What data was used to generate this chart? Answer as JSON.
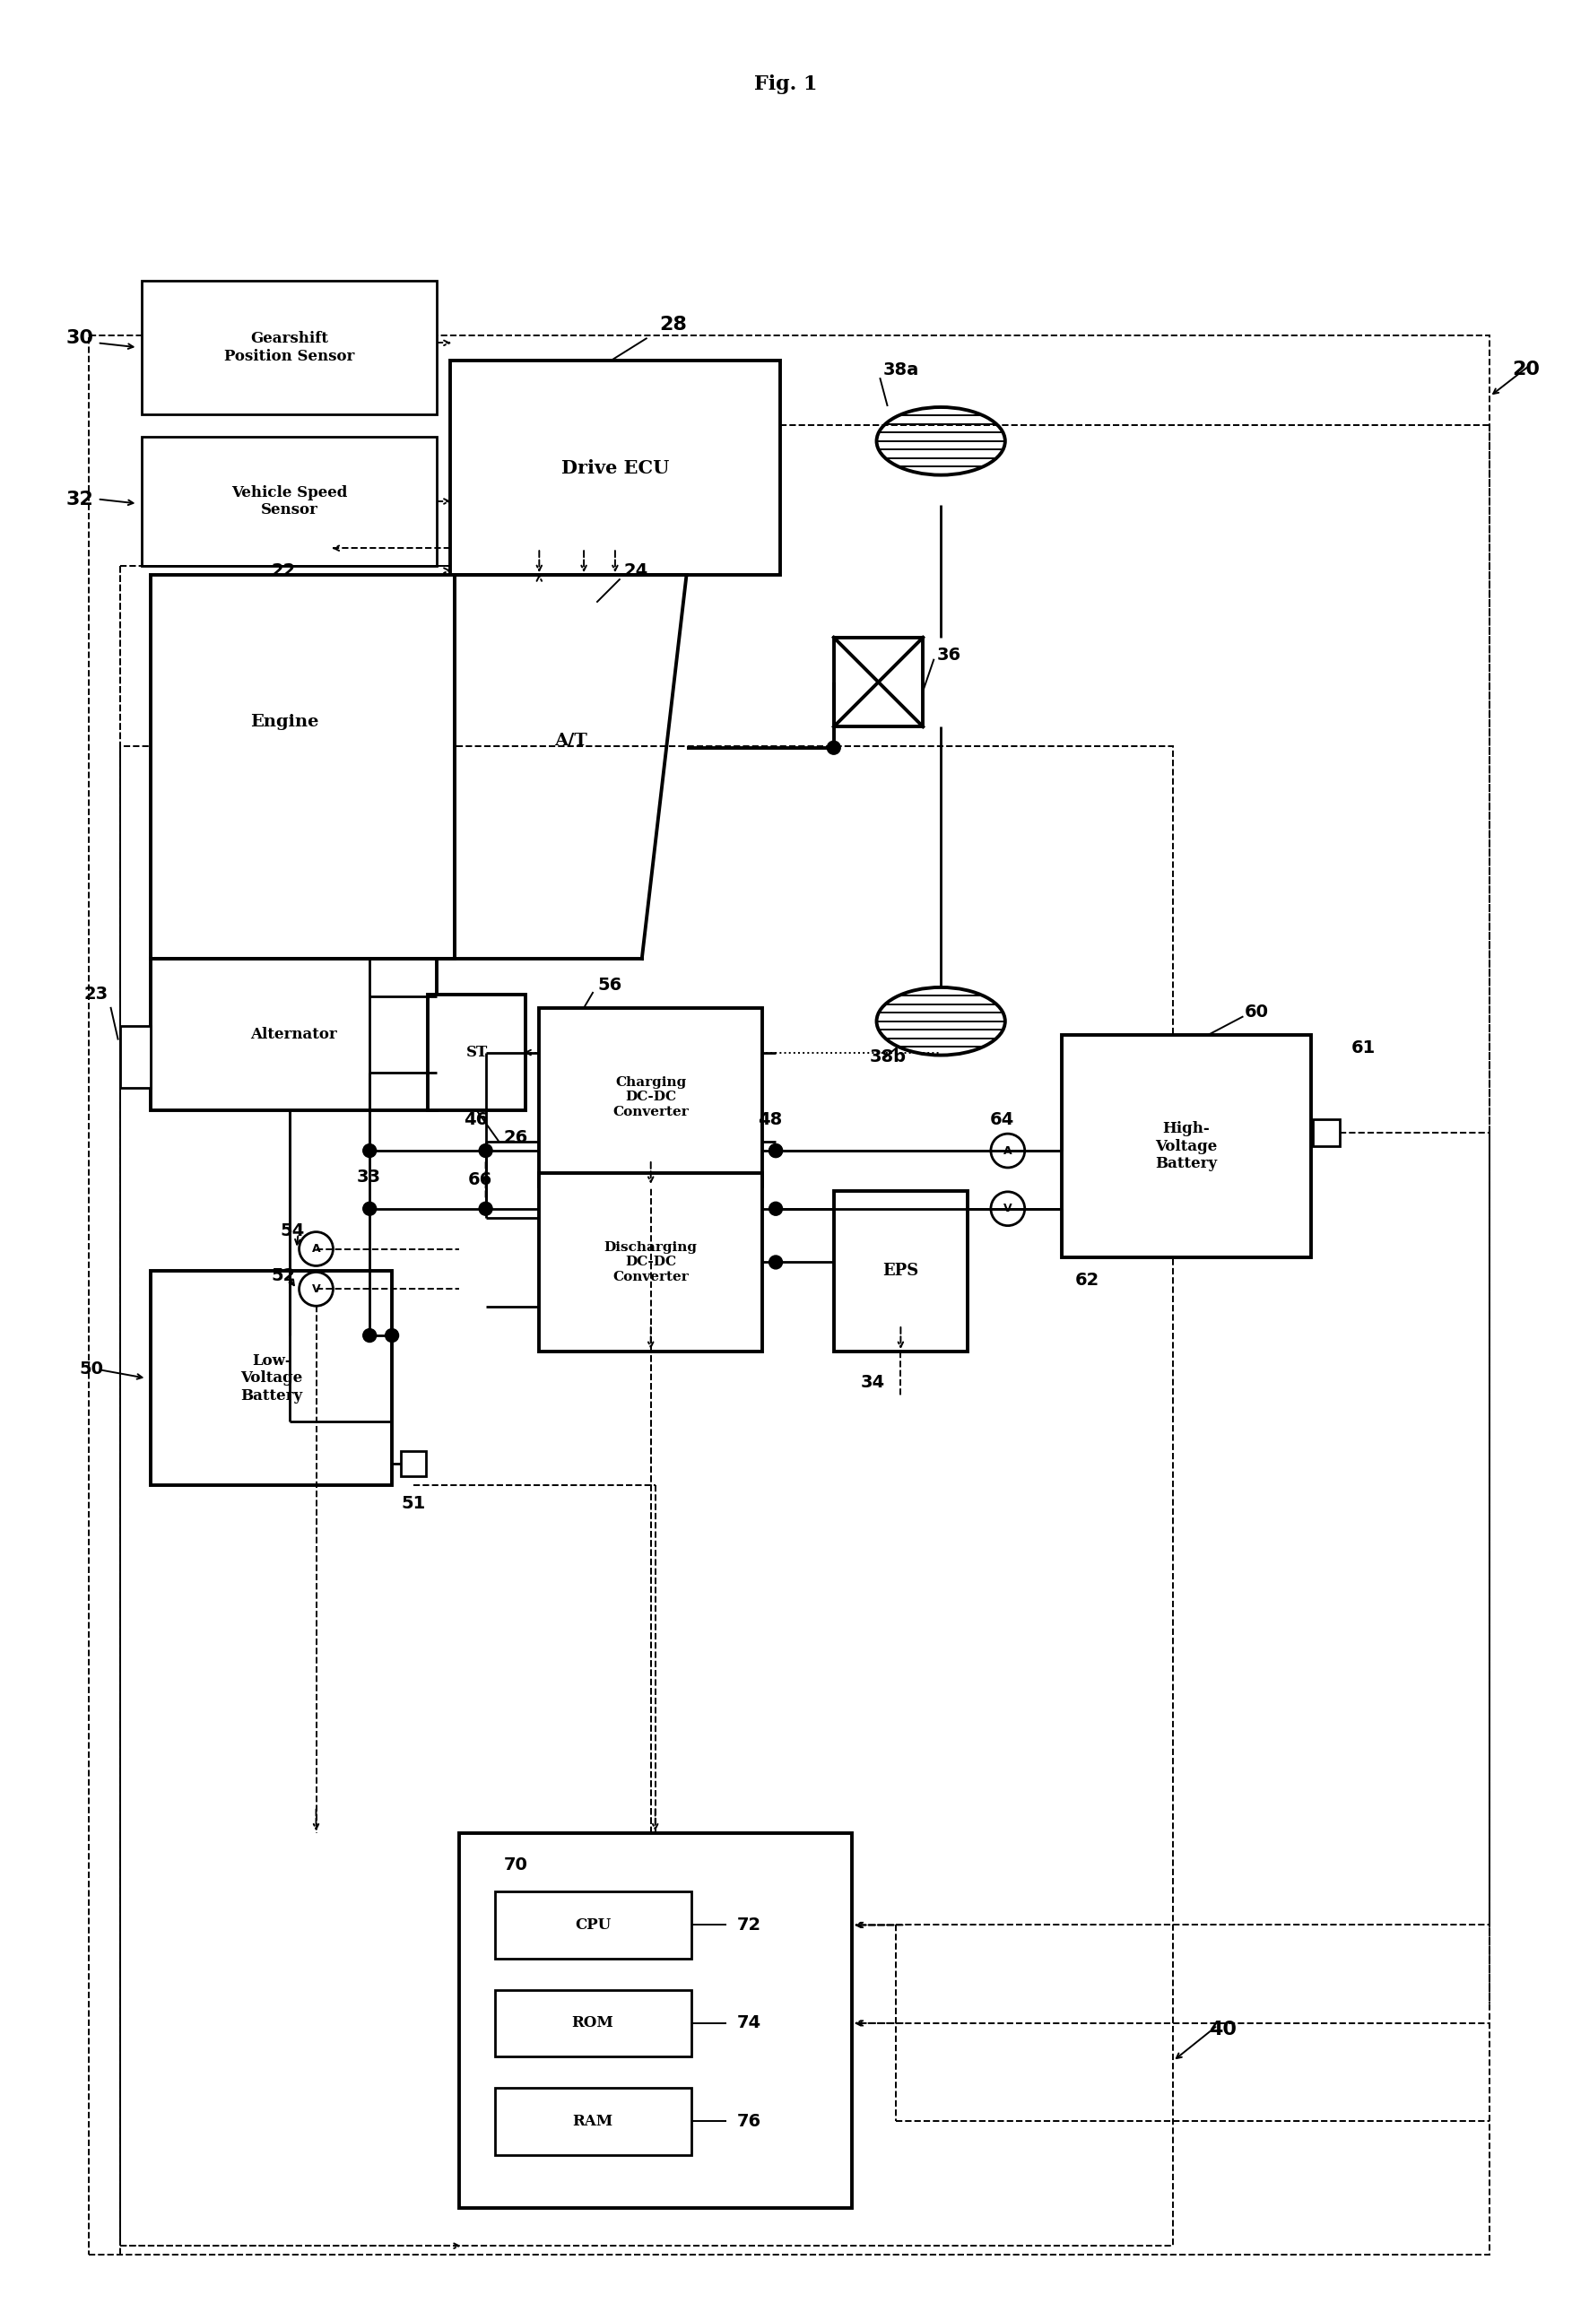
{
  "title": "Fig. 1",
  "bg": "#ffffff",
  "lbl_20": "20",
  "lbl_22": "22",
  "lbl_23": "23",
  "lbl_24": "24",
  "lbl_26": "26",
  "lbl_28": "28",
  "lbl_30": "30",
  "lbl_32": "32",
  "lbl_33": "33",
  "lbl_34": "34",
  "lbl_36": "36",
  "lbl_38a": "38a",
  "lbl_38b": "38b",
  "lbl_40": "40",
  "lbl_46": "46",
  "lbl_48": "48",
  "lbl_50": "50",
  "lbl_51": "51",
  "lbl_52": "52",
  "lbl_54": "54",
  "lbl_56": "56",
  "lbl_60": "60",
  "lbl_61": "61",
  "lbl_62": "62",
  "lbl_64": "64",
  "lbl_66": "66",
  "lbl_70": "70",
  "lbl_72": "72",
  "lbl_74": "74",
  "lbl_76": "76",
  "txt_drive_ecu": "Drive ECU",
  "txt_gearshift": "Gearshift\nPosition Sensor",
  "txt_vehicle_speed": "Vehicle Speed\nSensor",
  "txt_engine": "Engine",
  "txt_at": "A/T",
  "txt_st": "ST",
  "txt_alternator": "Alternator",
  "txt_charging": "Charging\nDC-DC\nConverter",
  "txt_discharging": "Discharging\nDC-DC\nConverter",
  "txt_eps": "EPS",
  "txt_hv_battery": "High-\nVoltage\nBattery",
  "txt_lv_battery": "Low-\nVoltage\nBattery",
  "txt_cpu": "CPU",
  "txt_rom": "ROM",
  "txt_ram": "RAM"
}
